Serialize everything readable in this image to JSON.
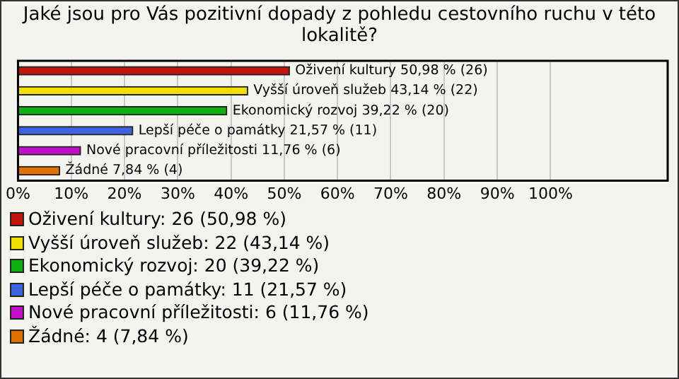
{
  "chart_data": {
    "type": "bar",
    "orientation": "horizontal",
    "title": "Jaké jsou pro Vás pozitivní dopady z pohledu cestovního ruchu v této lokalitě?",
    "categories": [
      null,
      null,
      null,
      null,
      null,
      null
    ],
    "values": [
      50.98,
      43.14,
      39.22,
      21.57,
      11.76,
      7.84
    ],
    "colors": [
      "#c0140c",
      "#f0e000",
      "#10b010",
      "#3c64e0",
      "#c010c8",
      "#e07000"
    ],
    "value_labels": [
      "Oživení kultury 50,98 % (26)",
      "Vyšší úroveň služeb 43,14 % (22)",
      "Ekonomický rozvoj 39,22 % (20)",
      "Lepší péče o památky 21,57 % (11)",
      "Nové pracovní příležitosti 11,76 % (6)",
      "Žádné 7,84 % (4)"
    ],
    "xlim": [
      0,
      122
    ],
    "xticks": [
      {
        "value": 0,
        "label": "0%"
      },
      {
        "value": 10,
        "label": "10%"
      },
      {
        "value": 20,
        "label": "20%"
      },
      {
        "value": 30,
        "label": "30%"
      },
      {
        "value": 40,
        "label": "40%"
      },
      {
        "value": 50,
        "label": "50%"
      },
      {
        "value": 60,
        "label": "60%"
      },
      {
        "value": 70,
        "label": "70%"
      },
      {
        "value": 80,
        "label": "80%"
      },
      {
        "value": 90,
        "label": "90%"
      },
      {
        "value": 100,
        "label": "100%"
      }
    ],
    "grid": "x",
    "annotations": [
      "Oživení kultury: 26 (50,98 %)",
      "Vyšší úroveň služeb: 22 (43,14 %)",
      "Ekonomický rozvoj: 20 (39,22 %)",
      "Lepší péče o památky: 11 (21,57 %)",
      "Nové pracovní příležitosti: 6 (11,76 %)",
      "Žádné: 4 (7,84 %)"
    ]
  }
}
